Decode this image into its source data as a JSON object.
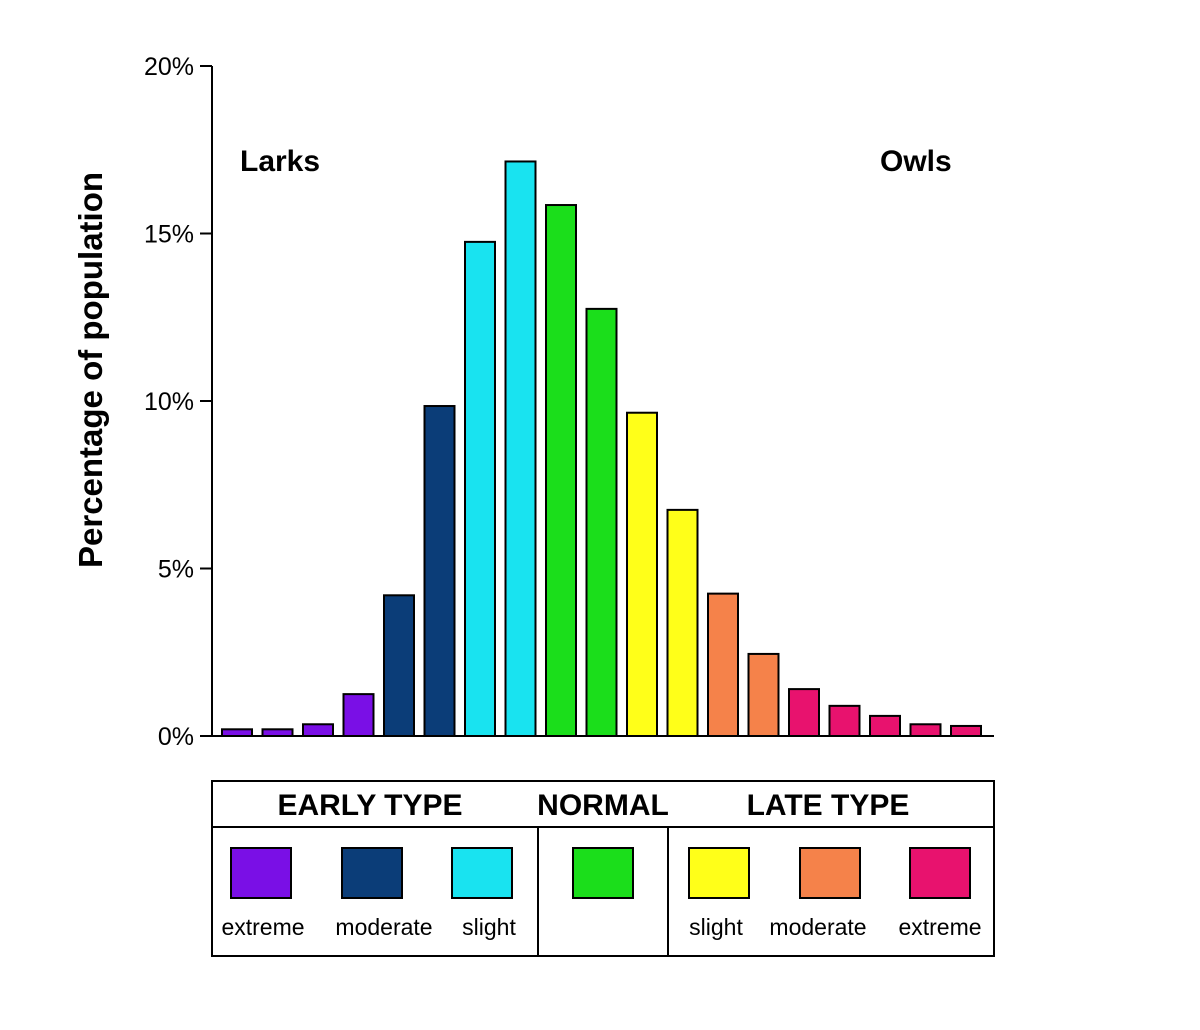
{
  "chart_data": {
    "type": "bar",
    "title": "",
    "ylabel": "Percentage of population",
    "xlabel": "",
    "ylim": [
      0,
      20
    ],
    "yticks": [
      "0%",
      "5%",
      "10%",
      "15%",
      "20%"
    ],
    "ytick_values": [
      0,
      5,
      10,
      15,
      20
    ],
    "annotations": {
      "left": "Larks",
      "right": "Owls"
    },
    "values": [
      0.2,
      0.2,
      0.35,
      1.25,
      4.2,
      9.85,
      14.75,
      17.15,
      15.85,
      12.75,
      9.65,
      6.75,
      4.25,
      2.45,
      1.4,
      0.9,
      0.6,
      0.35,
      0.3
    ],
    "colors": [
      "#7a0fe6",
      "#7a0fe6",
      "#7a0fe6",
      "#7a0fe6",
      "#0b3d78",
      "#0b3d78",
      "#19e3f0",
      "#19e3f0",
      "#1bde1b",
      "#1bde1b",
      "#ffff19",
      "#ffff19",
      "#f5824a",
      "#f5824a",
      "#e8126e",
      "#e8126e",
      "#e8126e",
      "#e8126e",
      "#e8126e"
    ],
    "grid": false,
    "legend": {
      "groups": [
        {
          "title": "EARLY TYPE",
          "items": [
            {
              "label": "extreme",
              "color": "#7a0fe6"
            },
            {
              "label": "moderate",
              "color": "#0b3d78"
            },
            {
              "label": "slight",
              "color": "#19e3f0"
            }
          ]
        },
        {
          "title": "NORMAL",
          "items": [
            {
              "label": "",
              "color": "#1bde1b"
            }
          ]
        },
        {
          "title": "LATE TYPE",
          "items": [
            {
              "label": "slight",
              "color": "#ffff19"
            },
            {
              "label": "moderate",
              "color": "#f5824a"
            },
            {
              "label": "extreme",
              "color": "#e8126e"
            }
          ]
        }
      ]
    }
  }
}
